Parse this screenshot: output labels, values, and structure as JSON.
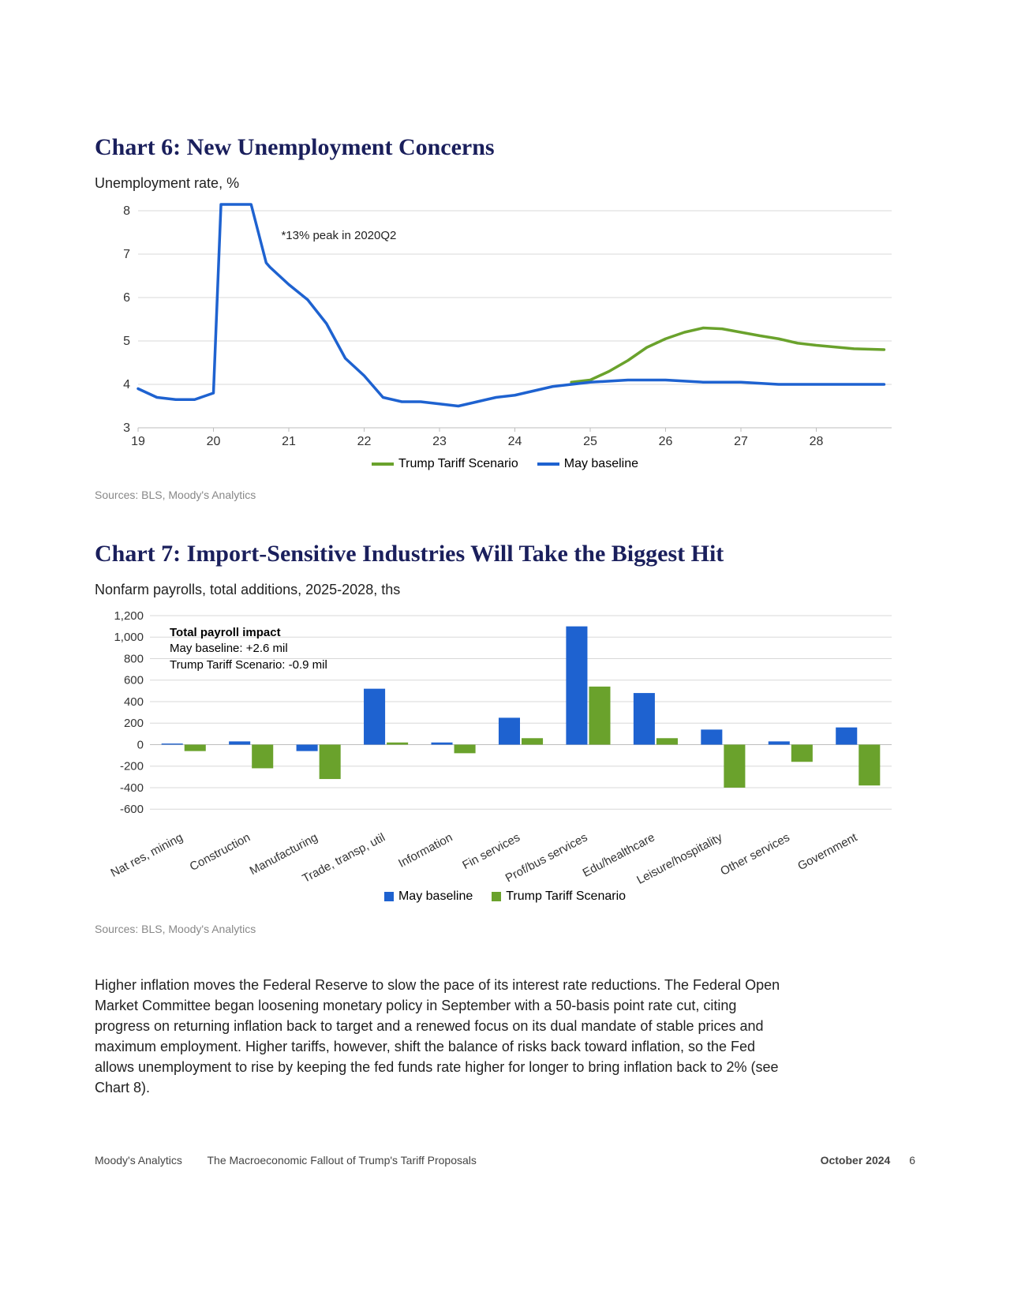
{
  "page": {
    "footer_org": "Moody's Analytics",
    "footer_doc": "The Macroeconomic Fallout of Trump's Tariff Proposals",
    "footer_date": "October 2024",
    "footer_page": "6"
  },
  "chart6": {
    "type": "line",
    "title": "Chart 6: New Unemployment Concerns",
    "subtitle": "Unemployment rate, %",
    "annotation": "*13% peak in 2020Q2",
    "sources": "Sources: BLS, Moody's Analytics",
    "x_ticks": [
      19,
      20,
      21,
      22,
      23,
      24,
      25,
      26,
      27,
      28
    ],
    "y_ticks": [
      3,
      4,
      5,
      6,
      7,
      8
    ],
    "ylim": [
      3,
      8
    ],
    "xlim": [
      19,
      29
    ],
    "grid_color": "#d8d8d8",
    "axis_color": "#bdbdbd",
    "background_color": "#ffffff",
    "tick_fontsize": 16,
    "line_width": 3.5,
    "legend": [
      {
        "label": "Trump Tariff Scenario",
        "color": "#6aa22c"
      },
      {
        "label": "May baseline",
        "color": "#1e62d0"
      }
    ],
    "series_baseline": {
      "color": "#1e62d0",
      "points": [
        [
          19.0,
          3.9
        ],
        [
          19.25,
          3.7
        ],
        [
          19.5,
          3.65
        ],
        [
          19.75,
          3.65
        ],
        [
          20.0,
          3.8
        ],
        [
          20.1,
          8.5
        ],
        [
          20.25,
          13.0
        ],
        [
          20.5,
          8.5
        ],
        [
          20.7,
          6.8
        ],
        [
          20.75,
          6.7
        ],
        [
          21.0,
          6.3
        ],
        [
          21.25,
          5.95
        ],
        [
          21.5,
          5.4
        ],
        [
          21.75,
          4.6
        ],
        [
          22.0,
          4.2
        ],
        [
          22.25,
          3.7
        ],
        [
          22.5,
          3.6
        ],
        [
          22.75,
          3.6
        ],
        [
          23.0,
          3.55
        ],
        [
          23.25,
          3.5
        ],
        [
          23.5,
          3.6
        ],
        [
          23.75,
          3.7
        ],
        [
          24.0,
          3.75
        ],
        [
          24.25,
          3.85
        ],
        [
          24.5,
          3.95
        ],
        [
          24.75,
          4.0
        ],
        [
          25.0,
          4.05
        ],
        [
          25.5,
          4.1
        ],
        [
          26.0,
          4.1
        ],
        [
          26.5,
          4.05
        ],
        [
          27.0,
          4.05
        ],
        [
          27.5,
          4.0
        ],
        [
          28.0,
          4.0
        ],
        [
          28.5,
          4.0
        ],
        [
          28.9,
          4.0
        ]
      ]
    },
    "series_trump": {
      "color": "#6aa22c",
      "points": [
        [
          24.75,
          4.05
        ],
        [
          25.0,
          4.1
        ],
        [
          25.25,
          4.3
        ],
        [
          25.5,
          4.55
        ],
        [
          25.75,
          4.85
        ],
        [
          26.0,
          5.05
        ],
        [
          26.25,
          5.2
        ],
        [
          26.5,
          5.3
        ],
        [
          26.75,
          5.28
        ],
        [
          27.0,
          5.2
        ],
        [
          27.25,
          5.12
        ],
        [
          27.5,
          5.05
        ],
        [
          27.75,
          4.95
        ],
        [
          28.0,
          4.9
        ],
        [
          28.5,
          4.82
        ],
        [
          28.9,
          4.8
        ]
      ]
    }
  },
  "chart7": {
    "type": "bar",
    "title": "Chart 7: Import-Sensitive Industries Will Take the Biggest Hit",
    "subtitle": "Nonfarm payrolls, total additions, 2025-2028, ths",
    "sources": "Sources: BLS, Moody's Analytics",
    "annotation_head": "Total payroll impact",
    "annotation_line1": "May baseline: +2.6 mil",
    "annotation_line2": "Trump Tariff Scenario: -0.9 mil",
    "y_ticks": [
      -600,
      -400,
      -200,
      0,
      200,
      400,
      600,
      800,
      1000,
      1200
    ],
    "ylim": [
      -650,
      1200
    ],
    "grid_color": "#d8d8d8",
    "axis_color": "#bdbdbd",
    "background_color": "#ffffff",
    "tick_fontsize": 15,
    "bar_width": 0.34,
    "colors": {
      "baseline": "#1e62d0",
      "trump": "#6aa22c"
    },
    "legend": [
      {
        "label": "May baseline",
        "color": "#1e62d0"
      },
      {
        "label": "Trump Tariff Scenario",
        "color": "#6aa22c"
      }
    ],
    "categories": [
      "Nat res, mining",
      "Construction",
      "Manufacturing",
      "Trade, transp, util",
      "Information",
      "Fin services",
      "Prof/bus services",
      "Edu/healthcare",
      "Leisure/hospitality",
      "Other services",
      "Government"
    ],
    "baseline_values": [
      10,
      30,
      -60,
      520,
      20,
      250,
      1100,
      480,
      140,
      30,
      160
    ],
    "trump_values": [
      -60,
      -220,
      -320,
      20,
      -80,
      60,
      540,
      60,
      -400,
      -160,
      -380
    ]
  },
  "body": {
    "para": "Higher inflation moves the Federal Reserve to slow the pace of its interest rate reductions. The Federal Open Market Committee began loosening monetary policy in September with a 50-basis point rate cut, citing progress on returning inflation back to target and a renewed focus on its dual mandate of stable prices and maximum employment. Higher tariffs, however, shift the balance of risks back toward inflation, so the Fed allows unemployment to rise by keeping the fed funds rate higher for longer to bring inflation back to 2% (see Chart 8)."
  }
}
